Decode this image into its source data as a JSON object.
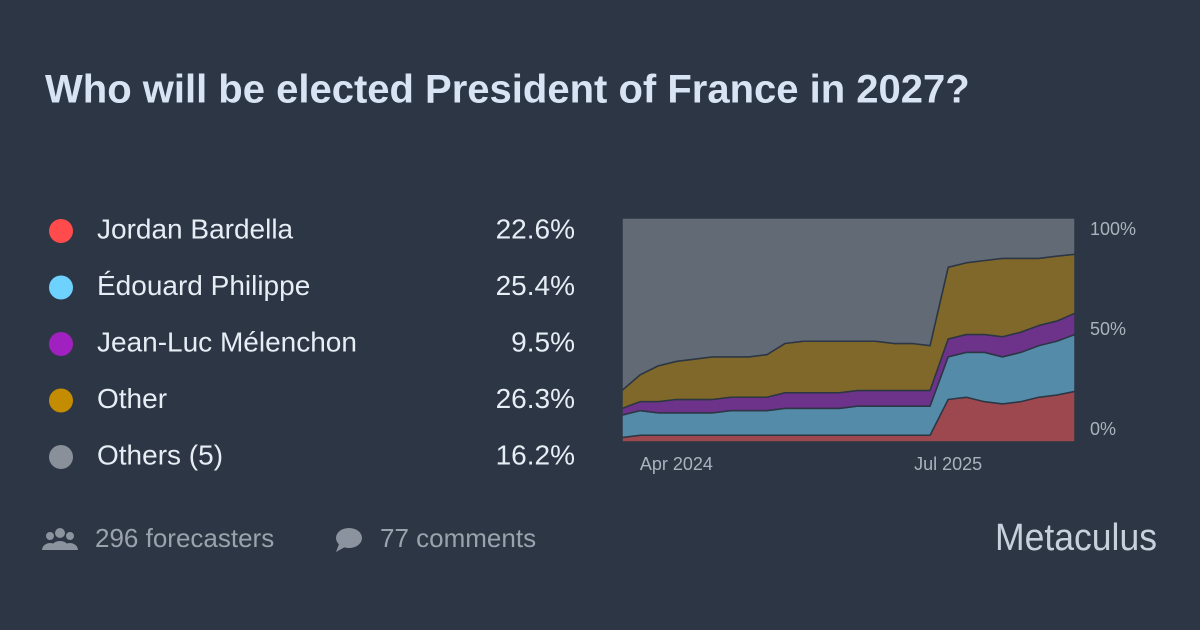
{
  "title": "Who will be elected President of France in 2027?",
  "chart_data": {
    "type": "area",
    "stacked": true,
    "x": [
      "2024-01",
      "2024-02",
      "2024-03",
      "2024-04",
      "2024-05",
      "2024-06",
      "2024-07",
      "2024-08",
      "2024-09",
      "2024-10",
      "2024-11",
      "2024-12",
      "2025-01",
      "2025-02",
      "2025-03",
      "2025-04",
      "2025-05",
      "2025-06",
      "2025-07",
      "2025-08",
      "2025-09",
      "2025-10",
      "2025-11",
      "2025-12",
      "2026-01",
      "2026-02"
    ],
    "xlim": [
      "2024-01",
      "2026-02"
    ],
    "xticks": [
      {
        "value": "2024-04",
        "label": "Apr 2024"
      },
      {
        "value": "2025-07",
        "label": "Jul 2025"
      }
    ],
    "ylim": [
      0,
      100
    ],
    "yticks": [
      {
        "value": 100,
        "label": "100%"
      },
      {
        "value": 50,
        "label": "50%"
      },
      {
        "value": 0,
        "label": "0%"
      }
    ],
    "series": [
      {
        "name": "Jordan Bardella",
        "color": "#ff4b4b",
        "current": "22.6%",
        "values": [
          2,
          3,
          3,
          3,
          3,
          3,
          3,
          3,
          3,
          3,
          3,
          3,
          3,
          3,
          3,
          3,
          3,
          3,
          19,
          20,
          18,
          17,
          18,
          20,
          21,
          22.6
        ]
      },
      {
        "name": "Édouard Philippe",
        "color": "#6ed2ff",
        "current": "25.4%",
        "values": [
          10,
          11,
          10,
          10,
          10,
          10,
          11,
          11,
          11,
          12,
          12,
          12,
          12,
          13,
          13,
          13,
          13,
          13,
          19,
          20,
          22,
          21,
          22,
          23,
          24,
          25.4
        ]
      },
      {
        "name": "Jean-Luc Mélenchon",
        "color": "#a020c0",
        "current": "9.5%",
        "values": [
          3,
          4,
          5,
          6,
          6,
          6,
          6,
          6,
          6,
          7,
          7,
          7,
          7,
          7,
          7,
          7,
          7,
          7,
          8,
          8,
          8,
          9,
          9,
          9,
          9,
          9.5
        ]
      },
      {
        "name": "Other",
        "color": "#c48c00",
        "current": "26.3%",
        "values": [
          8,
          12,
          16,
          17,
          18,
          19,
          18,
          18,
          19,
          22,
          23,
          23,
          23,
          22,
          22,
          21,
          21,
          20,
          32,
          32,
          33,
          35,
          33,
          30,
          29,
          26.3
        ]
      },
      {
        "name": "Others (5)",
        "color": "#8a9099",
        "current": "16.2%",
        "values": [
          77,
          70,
          66,
          64,
          63,
          62,
          62,
          62,
          61,
          56,
          55,
          55,
          55,
          55,
          55,
          56,
          56,
          57,
          22,
          20,
          19,
          18,
          18,
          18,
          17,
          16.2
        ]
      }
    ]
  },
  "footer": {
    "forecasters": "296 forecasters",
    "comments": "77 comments",
    "brand": "Metaculus"
  }
}
